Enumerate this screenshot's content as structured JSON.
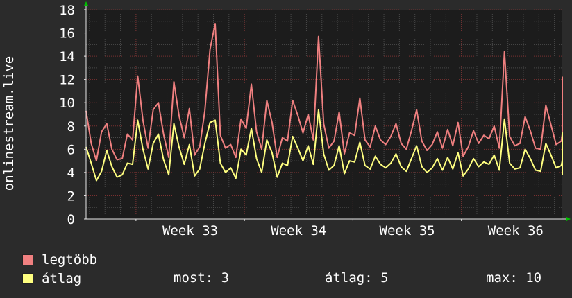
{
  "chart_data": {
    "type": "line",
    "ylabel": "onlinestream.live",
    "xlabel": "",
    "ylim": [
      0,
      18
    ],
    "yticks": [
      0,
      2,
      4,
      6,
      8,
      10,
      12,
      14,
      16,
      18
    ],
    "x_range_weeks": [
      32.54,
      36.93
    ],
    "xtick_labels": [
      {
        "label": "Week 33",
        "at": 33.0
      },
      {
        "label": "Week 34",
        "at": 34.0
      },
      {
        "label": "Week 35",
        "at": 35.0
      },
      {
        "label": "Week 36",
        "at": 36.0
      }
    ],
    "grid": true,
    "legend_placement": "bottom-left",
    "samples_per_day": 3,
    "series": [
      {
        "name": "legtöbb",
        "color": "#f08080",
        "values": [
          9.3,
          6.5,
          5.0,
          7.5,
          8.2,
          6.0,
          5.1,
          5.2,
          7.3,
          6.8,
          12.3,
          8.5,
          6.1,
          9.4,
          10.0,
          7.3,
          5.3,
          11.8,
          8.9,
          7.0,
          9.5,
          5.5,
          6.2,
          9.3,
          14.6,
          16.8,
          7.2,
          6.1,
          6.4,
          5.3,
          8.6,
          7.8,
          11.6,
          7.5,
          6.0,
          10.2,
          8.3,
          5.3,
          7.0,
          6.7,
          10.2,
          8.9,
          7.4,
          9.0,
          6.8,
          15.7,
          8.2,
          6.1,
          6.7,
          9.2,
          5.6,
          7.4,
          7.2,
          10.4,
          6.8,
          6.2,
          8.0,
          6.8,
          6.4,
          7.1,
          8.2,
          6.5,
          6.0,
          7.6,
          9.4,
          6.7,
          5.9,
          6.4,
          7.5,
          6.1,
          7.7,
          6.3,
          8.3,
          5.4,
          6.2,
          7.6,
          6.5,
          7.2,
          6.9,
          8.0,
          6.1,
          14.4,
          7.1,
          6.3,
          6.5,
          8.8,
          7.6,
          6.1,
          6.0,
          9.8,
          8.1,
          6.4,
          6.7,
          7.3,
          8.3,
          6.4,
          7.0,
          6.8,
          6.6,
          12.2,
          7.4,
          6.2,
          6.9,
          6.0,
          7.6,
          6.4,
          8.5,
          6.5,
          7.2,
          6.7,
          8.6,
          8.0,
          6.3,
          8.7,
          6.5,
          8.4,
          7.8,
          7.2,
          6.0,
          7.5,
          6.1,
          5.9,
          7.0,
          6.2
        ]
      },
      {
        "name": "átlag",
        "color": "#ffff80",
        "values": [
          6.2,
          4.8,
          3.3,
          4.1,
          5.9,
          4.5,
          3.6,
          3.8,
          4.8,
          4.7,
          8.5,
          6.0,
          4.3,
          6.5,
          7.3,
          5.1,
          3.8,
          8.2,
          6.2,
          4.7,
          6.4,
          3.7,
          4.3,
          6.5,
          8.3,
          8.5,
          4.8,
          4.0,
          4.4,
          3.5,
          6.0,
          5.5,
          7.8,
          5.2,
          4.0,
          6.8,
          5.7,
          3.6,
          4.8,
          4.6,
          7.1,
          6.1,
          5.0,
          6.3,
          4.7,
          9.4,
          5.6,
          4.2,
          4.6,
          6.3,
          3.9,
          5.0,
          4.9,
          6.6,
          4.6,
          4.3,
          5.4,
          4.7,
          4.4,
          4.8,
          5.6,
          4.5,
          4.1,
          5.2,
          6.3,
          4.5,
          4.0,
          4.4,
          5.2,
          4.2,
          5.3,
          4.3,
          5.7,
          3.7,
          4.3,
          5.2,
          4.5,
          4.9,
          4.7,
          5.5,
          4.2,
          8.6,
          4.8,
          4.3,
          4.4,
          6.0,
          5.2,
          4.2,
          4.1,
          6.5,
          5.5,
          4.4,
          4.6,
          5.0,
          5.7,
          4.4,
          4.8,
          4.6,
          4.5,
          7.4,
          5.0,
          4.2,
          4.7,
          4.1,
          5.2,
          4.4,
          5.8,
          4.4,
          4.9,
          4.6,
          5.9,
          5.5,
          4.3,
          5.9,
          4.4,
          5.7,
          5.3,
          4.9,
          4.1,
          5.1,
          4.2,
          4.0,
          4.8,
          3.8
        ]
      }
    ]
  },
  "legend": {
    "items": [
      {
        "label": "legtöbb",
        "color": "#f08080"
      },
      {
        "label": "átlag",
        "color": "#ffff80"
      }
    ]
  },
  "stats": {
    "most": "most: 3",
    "atlag": "átlag: 5",
    "max": "max: 10"
  }
}
